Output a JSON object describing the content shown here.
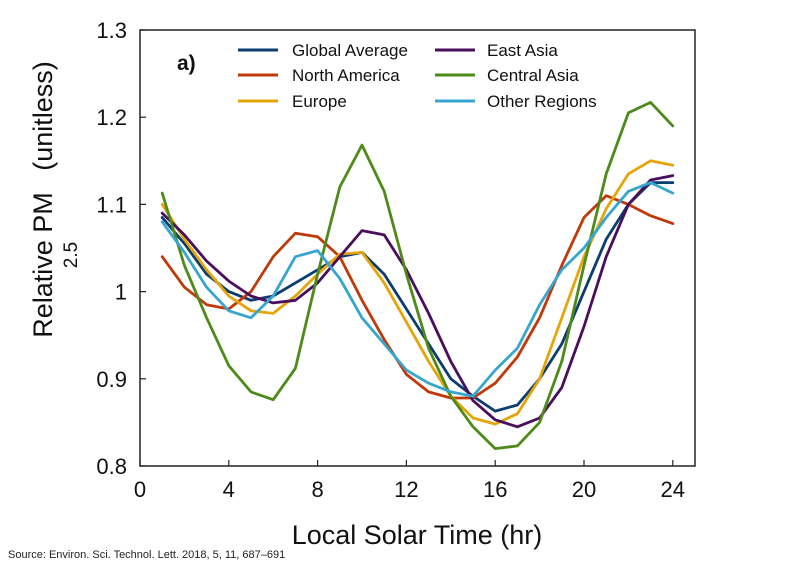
{
  "chart_data": {
    "type": "line",
    "panel_label": "a)",
    "xlabel": "Local Solar Time (hr)",
    "ylabel": "Relative PM",
    "ylabel_subscript": "2.5",
    "ylabel_unit": "(unitless)",
    "xlim": [
      0,
      25
    ],
    "ylim": [
      0.8,
      1.3
    ],
    "xticks": [
      0,
      4,
      8,
      12,
      16,
      20,
      24
    ],
    "yticks": [
      0.8,
      0.9,
      1,
      1.1,
      1.2,
      1.3
    ],
    "ytick_labels": [
      "0.8",
      "0.9",
      "1",
      "1.1",
      "1.2",
      "1.3"
    ],
    "grid": false,
    "legend_position": "top",
    "x": [
      1,
      2,
      3,
      4,
      5,
      6,
      7,
      8,
      9,
      10,
      11,
      12,
      13,
      14,
      15,
      16,
      17,
      18,
      19,
      20,
      21,
      22,
      23,
      24
    ],
    "series": [
      {
        "name": "Global Average",
        "color": "#0b3d6e",
        "values": [
          1.085,
          1.055,
          1.02,
          1.0,
          0.99,
          0.995,
          1.01,
          1.025,
          1.04,
          1.045,
          1.02,
          0.98,
          0.94,
          0.9,
          0.88,
          0.863,
          0.87,
          0.9,
          0.94,
          1.0,
          1.06,
          1.1,
          1.125,
          1.125
        ]
      },
      {
        "name": "North America",
        "color": "#c0390b",
        "values": [
          1.04,
          1.005,
          0.985,
          0.98,
          1.0,
          1.04,
          1.067,
          1.063,
          1.04,
          0.99,
          0.945,
          0.905,
          0.885,
          0.878,
          0.878,
          0.895,
          0.925,
          0.97,
          1.03,
          1.085,
          1.11,
          1.1,
          1.087,
          1.078
        ]
      },
      {
        "name": "Europe",
        "color": "#e5a50a",
        "values": [
          1.1,
          1.06,
          1.025,
          0.995,
          0.978,
          0.975,
          0.995,
          1.02,
          1.043,
          1.045,
          1.01,
          0.965,
          0.92,
          0.88,
          0.855,
          0.848,
          0.86,
          0.9,
          0.97,
          1.04,
          1.095,
          1.135,
          1.15,
          1.145
        ]
      },
      {
        "name": "East Asia",
        "color": "#4a0f5c",
        "values": [
          1.09,
          1.065,
          1.035,
          1.012,
          0.995,
          0.987,
          0.99,
          1.01,
          1.04,
          1.07,
          1.065,
          1.025,
          0.975,
          0.92,
          0.875,
          0.853,
          0.845,
          0.855,
          0.89,
          0.96,
          1.04,
          1.1,
          1.128,
          1.133
        ]
      },
      {
        "name": "Central Asia",
        "color": "#4d8a1a",
        "values": [
          1.113,
          1.03,
          0.97,
          0.915,
          0.885,
          0.876,
          0.912,
          1.02,
          1.12,
          1.168,
          1.115,
          1.02,
          0.935,
          0.88,
          0.845,
          0.82,
          0.823,
          0.85,
          0.92,
          1.03,
          1.135,
          1.205,
          1.217,
          1.19
        ]
      },
      {
        "name": "Other Regions",
        "color": "#36a6d0",
        "values": [
          1.08,
          1.045,
          1.005,
          0.978,
          0.97,
          0.995,
          1.04,
          1.047,
          1.015,
          0.97,
          0.94,
          0.91,
          0.895,
          0.885,
          0.88,
          0.91,
          0.935,
          0.985,
          1.025,
          1.05,
          1.085,
          1.115,
          1.125,
          1.113
        ]
      }
    ]
  },
  "source_text": "Source: Environ. Sci. Technol. Lett. 2018, 5, 11, 687–691"
}
